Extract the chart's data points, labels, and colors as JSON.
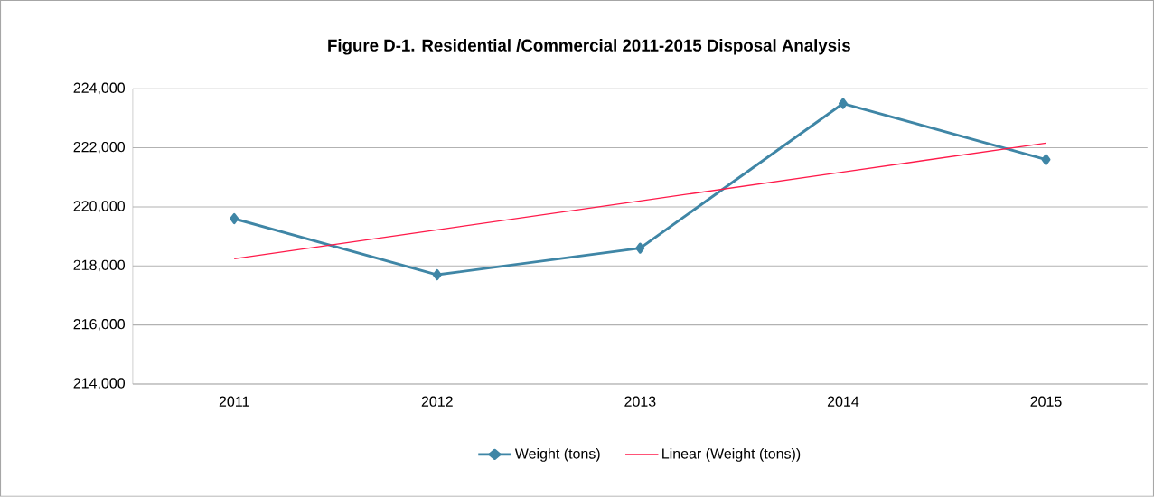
{
  "chart_data": {
    "type": "line",
    "title": "Figure D-1.  Residential /Commercial 2011-2015 Disposal Analysis",
    "categories": [
      "2011",
      "2012",
      "2013",
      "2014",
      "2015"
    ],
    "series": [
      {
        "name": "Weight (tons)",
        "color": "#3f86a6",
        "values": [
          219600,
          217700,
          218600,
          223500,
          221600
        ],
        "marker": "diamond"
      },
      {
        "name": "Linear (Weight (tons))",
        "color": "#ff1a4a",
        "values": [
          218240,
          219220,
          220200,
          221180,
          222160
        ],
        "marker": "none"
      }
    ],
    "ylim": [
      214000,
      224000
    ],
    "yticks": [
      {
        "value": 214000,
        "label": "214,000"
      },
      {
        "value": 216000,
        "label": "216,000"
      },
      {
        "value": 218000,
        "label": "218,000"
      },
      {
        "value": 220000,
        "label": "220,000"
      },
      {
        "value": 222000,
        "label": "222,000"
      },
      {
        "value": 224000,
        "label": "224,000"
      }
    ],
    "grid": "y",
    "legend": "bottom"
  }
}
